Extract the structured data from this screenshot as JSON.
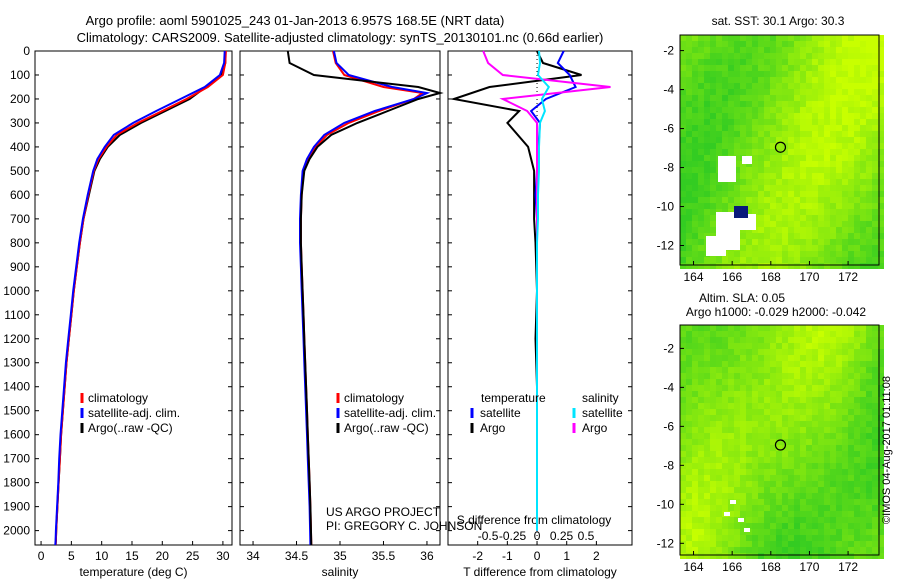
{
  "header": {
    "line1": "Argo profile: aoml 5901025_243 01-Jan-2013 6.957S 168.5E (NRT data)",
    "line2": "Climatology: CARS2009. Satellite-adjusted climatology: synTS_20130101.nc (0.66d earlier)"
  },
  "colors": {
    "climatology": "#ff0000",
    "satellite": "#0000ff",
    "argo": "#000000",
    "argo_salinity_diff": "#ff00ff",
    "satellite_salinity_diff": "#00e5ff",
    "map_green": "#33cc22",
    "map_yellow": "#c8ff00"
  },
  "depth_axis": {
    "ticks": [
      0,
      100,
      200,
      300,
      400,
      500,
      600,
      700,
      800,
      900,
      1000,
      1100,
      1200,
      1300,
      1400,
      1500,
      1600,
      1700,
      1800,
      1900,
      2000
    ],
    "range": [
      0,
      2060
    ]
  },
  "legend_profiles": [
    "climatology",
    "satellite-adj. clim.",
    "Argo(..raw -QC)"
  ],
  "panels": {
    "temperature": {
      "xlabel": "temperature (deg C)",
      "ticks": [
        0,
        5,
        10,
        15,
        20,
        25,
        30
      ],
      "range": [
        -1,
        31.5
      ]
    },
    "salinity": {
      "xlabel": "salinity",
      "ticks": [
        "34",
        "34.5",
        "35",
        "35.5",
        "36"
      ],
      "tick_values": [
        34,
        34.5,
        35,
        35.5,
        36
      ],
      "range": [
        33.85,
        36.15
      ],
      "note1": "US ARGO PROJECT",
      "note2": "PI: GREGORY C. JOHNSON"
    },
    "difference": {
      "xlabel_bottom": "T difference from climatology",
      "xlabel_top": "S difference from climatology",
      "t_ticks": [
        "-2",
        "-1",
        "0",
        "1",
        "2"
      ],
      "t_tick_values": [
        -2,
        -1,
        0,
        1,
        2
      ],
      "t_range": [
        -3,
        3.2
      ],
      "s_ticks": [
        "-0.5",
        "-0.25",
        "0",
        "0.25",
        "0.5"
      ],
      "s_tick_values": [
        -0.5,
        -0.25,
        0,
        0.25,
        0.5
      ],
      "legend_head_t": "temperature",
      "legend_head_s": "salinity",
      "legend_sat": "satellite",
      "legend_argo": "Argo"
    }
  },
  "maps": {
    "sst": {
      "title": "sat. SST: 30.1  Argo: 30.3",
      "yticks": [
        "-2",
        "-4",
        "-6",
        "-8",
        "-10",
        "-12"
      ],
      "ytick_values": [
        -2,
        -4,
        -6,
        -8,
        -10,
        -12
      ],
      "yrange": [
        -1.2,
        -13
      ],
      "xticks": [
        "164",
        "166",
        "168",
        "170",
        "172"
      ],
      "xtick_values": [
        164,
        166,
        168,
        170,
        172
      ],
      "xrange": [
        163.3,
        173.6
      ],
      "marker": {
        "lon": 168.5,
        "lat": -6.957
      }
    },
    "sla": {
      "title1": "Altim. SLA: 0.05",
      "title2": "Argo h1000: -0.029 h2000: -0.042",
      "yticks": [
        "-2",
        "-4",
        "-6",
        "-8",
        "-10",
        "-12"
      ],
      "ytick_values": [
        -2,
        -4,
        -6,
        -8,
        -10,
        -12
      ],
      "yrange": [
        -0.8,
        -12.6
      ],
      "xticks": [
        "164",
        "166",
        "168",
        "170",
        "172"
      ],
      "xtick_values": [
        164,
        166,
        168,
        170,
        172
      ],
      "xrange": [
        163.3,
        173.6
      ],
      "marker": {
        "lon": 168.5,
        "lat": -6.957
      }
    }
  },
  "watermark": "©IMOS 04-Aug-2017 01:11:08",
  "chart_data": [
    {
      "type": "line",
      "title": "",
      "xlabel": "temperature (deg C)",
      "ylabel": "",
      "ylim": [
        2060,
        0
      ],
      "xlim": [
        -1,
        31.5
      ],
      "series": [
        {
          "name": "climatology",
          "x": [
            30.5,
            30.4,
            30.0,
            27.5,
            24.0,
            20.0,
            16.0,
            12.5,
            10.8,
            9.5,
            8.7,
            7.8,
            7.0,
            6.4,
            5.9,
            5.4,
            5.0,
            4.6,
            4.2,
            3.9,
            3.6,
            3.3,
            3.1,
            2.9,
            2.7,
            2.6,
            2.5,
            2.45,
            2.4
          ],
          "y": [
            0,
            50,
            100,
            150,
            200,
            250,
            300,
            350,
            400,
            450,
            500,
            600,
            700,
            800,
            900,
            1000,
            1100,
            1200,
            1300,
            1400,
            1500,
            1600,
            1700,
            1800,
            1900,
            1950,
            2000,
            2040,
            2060
          ]
        },
        {
          "name": "satellite-adj. clim.",
          "x": [
            30.3,
            30.2,
            29.5,
            27.0,
            23.0,
            19.0,
            15.2,
            12.0,
            10.5,
            9.3,
            8.6,
            7.7,
            6.9,
            6.3,
            5.8,
            5.3,
            4.9,
            4.5,
            4.1,
            3.8,
            3.5,
            3.2,
            3.0,
            2.85,
            2.65,
            2.55,
            2.45,
            2.4,
            2.35
          ],
          "y": [
            0,
            50,
            100,
            150,
            200,
            250,
            300,
            350,
            400,
            450,
            500,
            600,
            700,
            800,
            900,
            1000,
            1100,
            1200,
            1300,
            1400,
            1500,
            1600,
            1700,
            1800,
            1900,
            1950,
            2000,
            2040,
            2060
          ]
        },
        {
          "name": "Argo(..raw -QC)",
          "x": [
            30.4,
            30.4,
            29.8,
            27.2,
            24.5,
            20.5,
            16.5,
            13.0,
            11.0,
            9.7,
            8.8,
            7.9,
            7.0,
            6.4,
            5.9,
            5.4,
            5.0,
            4.6,
            4.2,
            3.9,
            3.6,
            3.3,
            3.1,
            2.9,
            2.7,
            2.6,
            2.5,
            2.45,
            2.4
          ],
          "y": [
            0,
            50,
            100,
            150,
            200,
            250,
            300,
            350,
            400,
            450,
            500,
            600,
            700,
            800,
            900,
            1000,
            1100,
            1200,
            1300,
            1400,
            1500,
            1600,
            1700,
            1800,
            1900,
            1950,
            2000,
            2040,
            2060
          ]
        }
      ]
    },
    {
      "type": "line",
      "title": "",
      "xlabel": "salinity",
      "ylabel": "",
      "ylim": [
        2060,
        0
      ],
      "xlim": [
        33.85,
        36.15
      ],
      "series": [
        {
          "name": "climatology",
          "x": [
            34.92,
            34.95,
            35.05,
            35.5,
            35.95,
            35.85,
            35.45,
            35.1,
            34.85,
            34.72,
            34.64,
            34.58,
            34.56,
            34.55,
            34.55,
            34.56,
            34.57,
            34.58,
            34.59,
            34.6,
            34.61,
            34.62,
            34.63,
            34.64,
            34.65,
            34.66,
            34.67
          ],
          "y": [
            0,
            50,
            100,
            150,
            175,
            200,
            250,
            300,
            350,
            400,
            450,
            500,
            600,
            700,
            800,
            900,
            1000,
            1100,
            1200,
            1300,
            1400,
            1500,
            1600,
            1700,
            1800,
            1900,
            2060
          ]
        },
        {
          "name": "satellite-adj. clim.",
          "x": [
            34.93,
            34.96,
            35.1,
            35.6,
            36.0,
            35.85,
            35.4,
            35.05,
            34.82,
            34.7,
            34.62,
            34.57,
            34.55,
            34.54,
            34.54,
            34.55,
            34.56,
            34.57,
            34.58,
            34.59,
            34.6,
            34.61,
            34.62,
            34.63,
            34.64,
            34.65,
            34.66
          ],
          "y": [
            0,
            50,
            100,
            150,
            175,
            200,
            250,
            300,
            350,
            400,
            450,
            500,
            600,
            700,
            800,
            900,
            1000,
            1100,
            1200,
            1300,
            1400,
            1500,
            1600,
            1700,
            1800,
            1900,
            2060
          ]
        },
        {
          "name": "Argo(..raw -QC)",
          "x": [
            34.4,
            34.42,
            34.7,
            35.9,
            36.15,
            35.9,
            35.55,
            35.2,
            34.9,
            34.74,
            34.65,
            34.59,
            34.56,
            34.55,
            34.55,
            34.56,
            34.57,
            34.58,
            34.59,
            34.6,
            34.61,
            34.62,
            34.63,
            34.64,
            34.65,
            34.66,
            34.67
          ],
          "y": [
            0,
            50,
            100,
            150,
            175,
            200,
            250,
            300,
            350,
            400,
            450,
            500,
            600,
            700,
            800,
            900,
            1000,
            1100,
            1200,
            1300,
            1400,
            1500,
            1600,
            1700,
            1800,
            1900,
            2060
          ]
        }
      ]
    },
    {
      "type": "line",
      "title": "",
      "xlabel": "T difference from climatology",
      "ylabel": "",
      "ylim": [
        2060,
        0
      ],
      "xlim": [
        -3,
        3.2
      ],
      "series": [
        {
          "name": "temperature satellite",
          "x": [
            0.9,
            0.7,
            1.1,
            1.3,
            0.3,
            -0.2,
            0.1,
            0.05,
            0.0,
            -0.05,
            0.0,
            0.0,
            0.0,
            0.0,
            0.0,
            0.0,
            0.0,
            0.0
          ],
          "y": [
            0,
            50,
            100,
            150,
            200,
            250,
            300,
            400,
            500,
            600,
            700,
            800,
            1000,
            1200,
            1400,
            1600,
            1800,
            2000
          ]
        },
        {
          "name": "temperature Argo",
          "x": [
            0.0,
            0.2,
            1.5,
            -1.6,
            -2.8,
            -0.6,
            -1.0,
            -0.3,
            -0.1,
            -0.1,
            -0.1,
            -0.05,
            0.0,
            -0.05,
            0.0,
            0.0,
            0.0,
            0.0
          ],
          "y": [
            0,
            50,
            100,
            150,
            200,
            250,
            300,
            400,
            500,
            600,
            700,
            800,
            1000,
            1200,
            1400,
            1600,
            1800,
            2000
          ]
        },
        {
          "name": "salinity satellite",
          "x": [
            0.02,
            0.03,
            0.01,
            0.12,
            0.05,
            0.08,
            0.03,
            0.02,
            0.02,
            0.01,
            0.01,
            0.0,
            0.0,
            0.0,
            0.0,
            0.0,
            0.0,
            0.0
          ],
          "y": [
            0,
            50,
            100,
            150,
            200,
            250,
            300,
            400,
            500,
            600,
            700,
            800,
            1000,
            1200,
            1400,
            1600,
            1800,
            2000
          ]
        },
        {
          "name": "salinity Argo",
          "x": [
            -0.55,
            -0.5,
            -0.35,
            0.75,
            -0.35,
            -0.1,
            0.0,
            0.0,
            0.0,
            0.0,
            0.0,
            0.0,
            0.0,
            0.0,
            0.0,
            0.0,
            0.0,
            0.0
          ],
          "y": [
            0,
            50,
            100,
            150,
            200,
            250,
            300,
            400,
            500,
            600,
            700,
            800,
            1000,
            1200,
            1400,
            1600,
            1800,
            2000
          ]
        }
      ]
    }
  ]
}
